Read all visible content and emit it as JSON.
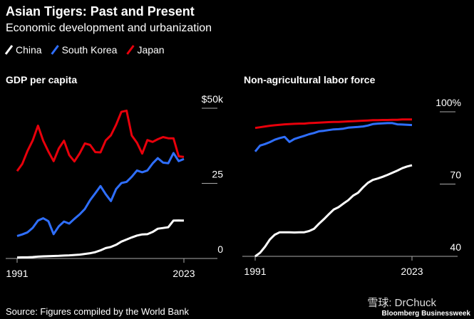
{
  "title": "Asian Tigers: Past and Present",
  "subtitle": "Economic development and urbanization",
  "legend": [
    {
      "name": "China",
      "color": "#ffffff"
    },
    {
      "name": "South Korea",
      "color": "#2f6fff"
    },
    {
      "name": "Japan",
      "color": "#e8000b"
    }
  ],
  "source": "Source: Figures compiled by the World Bank",
  "watermark": "雪球: DrChuck",
  "publisher": "Bloomberg Businessweek",
  "chart_data": [
    {
      "type": "line",
      "title": "GDP per capita",
      "xlim": [
        1991,
        2023
      ],
      "xticks": [
        1991,
        2023
      ],
      "ylim": [
        0,
        50
      ],
      "yticks": [
        0,
        {
          "value": 25,
          "label": "25"
        },
        {
          "value": 50,
          "label": "$50k"
        }
      ],
      "x": [
        1991,
        1992,
        1993,
        1994,
        1995,
        1996,
        1997,
        1998,
        1999,
        2000,
        2001,
        2002,
        2003,
        2004,
        2005,
        2006,
        2007,
        2008,
        2009,
        2010,
        2011,
        2012,
        2013,
        2014,
        2015,
        2016,
        2017,
        2018,
        2019,
        2020,
        2021,
        2022,
        2023
      ],
      "series": [
        {
          "color": "#ffffff",
          "values": [
            0.33,
            0.37,
            0.38,
            0.47,
            0.61,
            0.71,
            0.78,
            0.83,
            0.87,
            0.96,
            1.05,
            1.15,
            1.29,
            1.51,
            1.75,
            2.1,
            2.69,
            3.47,
            3.83,
            4.55,
            5.61,
            6.3,
            7.02,
            7.64,
            8.02,
            8.09,
            8.82,
            9.91,
            10.14,
            10.41,
            12.62,
            12.66,
            12.61
          ]
        },
        {
          "color": "#2f6fff",
          "values": [
            7.5,
            8.0,
            8.7,
            10.2,
            12.6,
            13.4,
            12.4,
            8.1,
            10.7,
            12.3,
            11.6,
            13.2,
            14.7,
            16.5,
            19.4,
            21.7,
            24.1,
            21.4,
            19.1,
            23.1,
            25.1,
            25.5,
            27.2,
            29.3,
            28.7,
            29.3,
            31.6,
            33.4,
            31.9,
            31.7,
            35.1,
            32.4,
            33.1
          ]
        },
        {
          "color": "#e8000b",
          "values": [
            29.1,
            31.5,
            35.8,
            39.3,
            44.2,
            39.2,
            35.6,
            32.4,
            36.6,
            39.2,
            34.4,
            32.3,
            35.0,
            38.3,
            37.8,
            35.4,
            35.3,
            39.3,
            41.0,
            44.5,
            48.8,
            49.2,
            40.9,
            38.5,
            34.9,
            39.4,
            38.8,
            39.7,
            40.4,
            40.0,
            40.0,
            34.0,
            33.8
          ]
        }
      ]
    },
    {
      "type": "line",
      "title": "Non-agricultural labor force",
      "xlim": [
        1991,
        2023
      ],
      "xticks": [
        1991,
        2023
      ],
      "ylim": [
        40,
        100
      ],
      "yticks": [
        40,
        {
          "value": 70,
          "label": "70"
        },
        {
          "value": 100,
          "label": "100%"
        }
      ],
      "x": [
        1991,
        1992,
        1993,
        1994,
        1995,
        1996,
        1997,
        1998,
        1999,
        2000,
        2001,
        2002,
        2003,
        2004,
        2005,
        2006,
        2007,
        2008,
        2009,
        2010,
        2011,
        2012,
        2013,
        2014,
        2015,
        2016,
        2017,
        2018,
        2019,
        2020,
        2021,
        2022,
        2023
      ],
      "series": [
        {
          "color": "#ffffff",
          "values": [
            40,
            41.5,
            44,
            47,
            49,
            50,
            50,
            50,
            49.9,
            50,
            50,
            50.5,
            51.4,
            53.5,
            55.4,
            57.4,
            59.4,
            60.4,
            61.9,
            63.3,
            65.2,
            66.4,
            68.6,
            70.5,
            71.7,
            72.3,
            73,
            73.8,
            74.7,
            75.6,
            76.6,
            77.3,
            77.8
          ]
        },
        {
          "color": "#2f6fff",
          "values": [
            83.5,
            86,
            86.6,
            87.4,
            88.4,
            89.1,
            89.6,
            87.5,
            88.7,
            89.4,
            90,
            90.7,
            91.2,
            91.9,
            92.1,
            92.4,
            92.7,
            92.8,
            93,
            93.4,
            93.6,
            93.7,
            93.9,
            94.3,
            94.9,
            95.1,
            95.2,
            95.3,
            95.3,
            94.8,
            94.7,
            94.6,
            94.5
          ]
        },
        {
          "color": "#e8000b",
          "values": [
            93.3,
            93.6,
            93.9,
            94.2,
            94.4,
            94.6,
            94.8,
            94.9,
            95,
            95.1,
            95.1,
            95.3,
            95.4,
            95.5,
            95.6,
            95.7,
            95.8,
            95.8,
            95.9,
            96,
            96.1,
            96.2,
            96.3,
            96.4,
            96.5,
            96.5,
            96.6,
            96.6,
            96.7,
            96.7,
            96.8,
            96.8,
            96.8
          ]
        }
      ]
    }
  ]
}
